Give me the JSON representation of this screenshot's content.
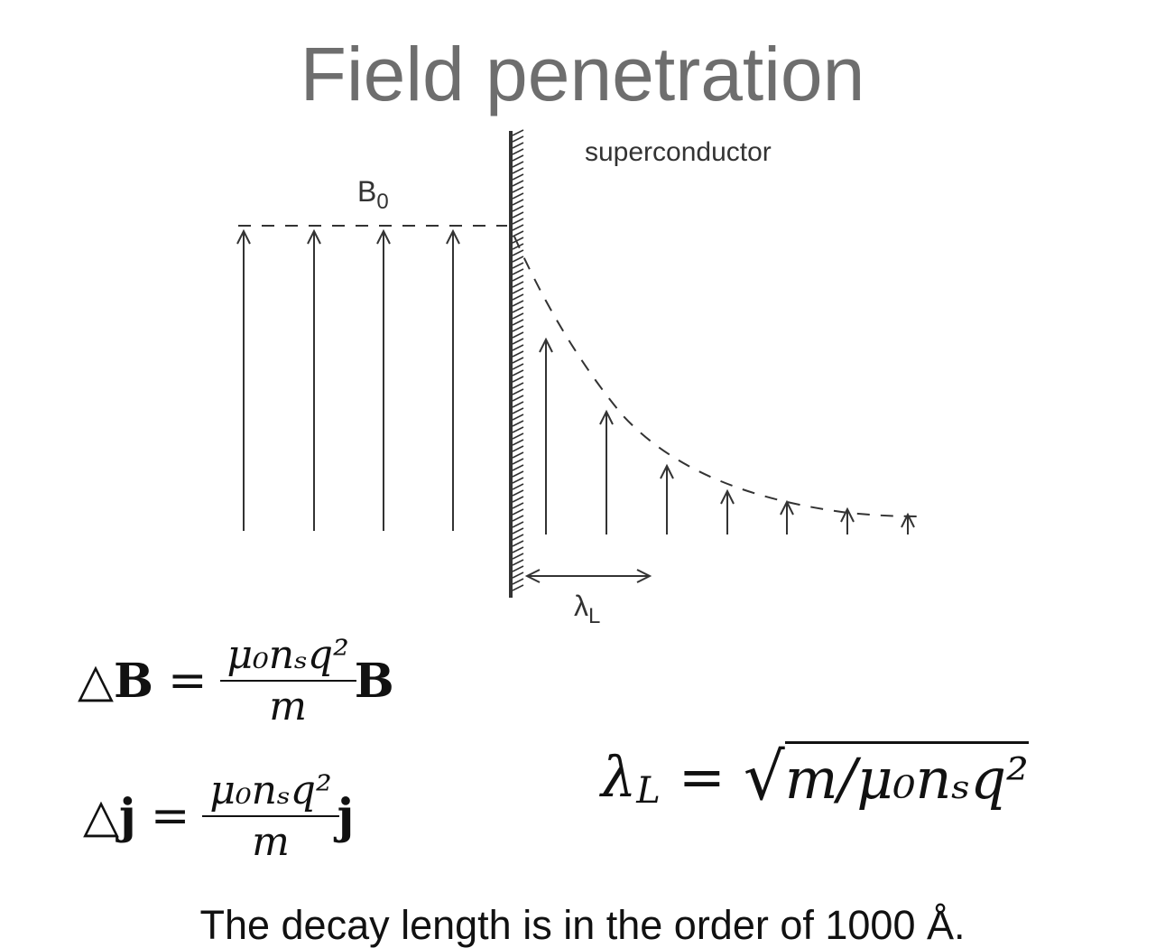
{
  "title": "Field penetration",
  "diagram": {
    "material_label": "superconductor",
    "field_label": "B",
    "field_label_sub": "0",
    "length_label": "λ",
    "length_label_sub": "L"
  },
  "equations": {
    "eq1": {
      "lhs_delta": "△",
      "lhs_symbol": "B",
      "equals": "=",
      "numerator": "μ₀nₛq²",
      "denominator": "m",
      "rhs_symbol": "B"
    },
    "eq2": {
      "lhs_delta": "△",
      "lhs_symbol": "j",
      "equals": "=",
      "numerator": "μ₀nₛq²",
      "denominator": "m",
      "rhs_symbol": "j"
    },
    "eq3": {
      "lhs": "λ",
      "lhs_sub": "L",
      "equals": "=",
      "radical": "√",
      "radicand": "m/μ₀nₛq²"
    }
  },
  "footer": "The decay length is in the order of 1000 Å."
}
